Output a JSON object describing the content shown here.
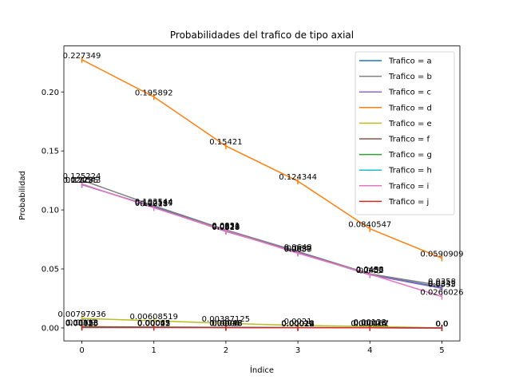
{
  "chart_data": {
    "type": "line",
    "title": "Probabilidades del trafico de tipo axial",
    "xlabel": "Índice",
    "ylabel": "Probabilidad",
    "x": [
      0,
      1,
      2,
      3,
      4,
      5
    ],
    "xlim": [
      -0.25,
      5.25
    ],
    "ylim": [
      -0.011,
      0.239
    ],
    "xticks": [
      0,
      1,
      2,
      3,
      4,
      5
    ],
    "yticks": [
      0.0,
      0.05,
      0.1,
      0.15,
      0.2
    ],
    "ytick_labels": [
      "0.00",
      "0.05",
      "0.10",
      "0.15",
      "0.20"
    ],
    "grid": false,
    "legend_position": "top-right",
    "series": [
      {
        "name": "Trafico = a",
        "color": "#1f77b4",
        "values": [
          0.121543,
          0.102514,
          0.0826,
          0.0637,
          0.0452,
          0.0342
        ],
        "labels": [
          "0.121543",
          "0.102514",
          "0.0826",
          "0.0637",
          "0.0452",
          "0.0342"
        ]
      },
      {
        "name": "Trafico = b",
        "color": "#7f7f7f",
        "values": [
          0.125224,
          0.103544,
          0.0831,
          0.0648,
          0.0458,
          0.0358
        ],
        "labels": [
          "0.125224",
          "0.103544",
          "0.0831",
          "0.0648",
          "0.0458",
          "0.0358"
        ]
      },
      {
        "name": "Trafico = c",
        "color": "#9467bd",
        "values": [
          0.12155,
          0.102157,
          0.0818,
          0.064,
          0.045,
          0.0335
        ],
        "labels": [
          "0.12155",
          "0.102157",
          "0.0818",
          "0.064",
          "0.045",
          "0.0335"
        ]
      },
      {
        "name": "Trafico = d",
        "color": "#ff7f0e",
        "values": [
          0.227349,
          0.195892,
          0.15421,
          0.124344,
          0.0840547,
          0.0590909
        ],
        "labels": [
          "0.227349",
          "0.195892",
          "0.15421",
          "0.124344",
          "0.0840547",
          "0.0590909"
        ]
      },
      {
        "name": "Trafico = e",
        "color": "#bcbd22",
        "values": [
          0.00797936,
          0.00608519,
          0.00387125,
          0.0021,
          0.00123,
          0.0
        ],
        "labels": [
          "0.00797936",
          "0.00608519",
          "0.00387125",
          "0.0021",
          "0.00123",
          "0.0"
        ]
      },
      {
        "name": "Trafico = f",
        "color": "#8c564b",
        "values": [
          0.00113,
          0.00062,
          0.00048,
          0.00024,
          0.00016,
          0.0
        ],
        "labels": [
          "0.00113",
          "0.00062",
          "0.00048",
          "0.00024",
          "0.00016",
          "0.0"
        ]
      },
      {
        "name": "Trafico = g",
        "color": "#2ca02c",
        "values": [
          0.0009,
          0.00065,
          0.0004,
          0.00022,
          0.00015,
          0.0
        ],
        "labels": [
          "0.0009",
          "0.00065",
          "0.0004",
          "0.00022",
          "0.00015",
          "0.0"
        ]
      },
      {
        "name": "Trafico = h",
        "color": "#17becf",
        "values": [
          0.00025,
          0.00022,
          0.00018,
          0.00012,
          0.000167,
          0.0
        ],
        "labels": [
          "0.00025",
          "0.00022",
          "0.00018",
          "0.00012",
          "0.000167",
          "0.0"
        ]
      },
      {
        "name": "Trafico = i",
        "color": "#e377c2",
        "values": [
          0.122,
          0.1018,
          0.0823,
          0.0633,
          0.0455,
          0.0266026
        ],
        "labels": [
          "0.122",
          "0.1018",
          "0.0823",
          "0.0633",
          "0.0455",
          "0.0266026"
        ]
      },
      {
        "name": "Trafico = j",
        "color": "#d62728",
        "values": [
          0.00058,
          0.00045,
          0.0003,
          0.00018,
          0.000161,
          0.0
        ],
        "labels": [
          "0.00058",
          "0.00045",
          "0.0003",
          "0.00018",
          "0.000161",
          "0.0"
        ]
      }
    ]
  }
}
